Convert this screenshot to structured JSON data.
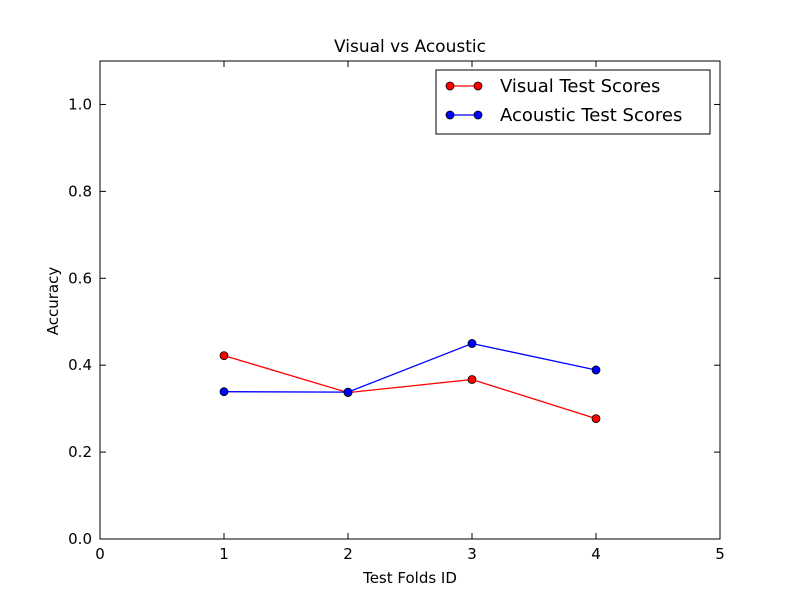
{
  "chart_data": {
    "type": "line",
    "title": "Visual vs Acoustic",
    "xlabel": "Test Folds ID",
    "ylabel": "Accuracy",
    "xlim": [
      0,
      5
    ],
    "ylim": [
      0.0,
      1.1
    ],
    "xticks": [
      0,
      1,
      2,
      3,
      4,
      5
    ],
    "xtick_labels": [
      "0",
      "1",
      "2",
      "3",
      "4",
      "5"
    ],
    "yticks": [
      0.0,
      0.2,
      0.4,
      0.6,
      0.8,
      1.0
    ],
    "ytick_labels": [
      "0.0",
      "0.2",
      "0.4",
      "0.6",
      "0.8",
      "1.0"
    ],
    "grid": false,
    "legend_position": "top-right",
    "series": [
      {
        "name": "Visual Test Scores",
        "color": "#ff0000",
        "x": [
          1,
          2,
          3,
          4
        ],
        "values": [
          0.422,
          0.337,
          0.367,
          0.277
        ]
      },
      {
        "name": "Acoustic Test Scores",
        "color": "#0000ff",
        "x": [
          1,
          2,
          3,
          4
        ],
        "values": [
          0.339,
          0.338,
          0.45,
          0.389
        ]
      }
    ]
  }
}
